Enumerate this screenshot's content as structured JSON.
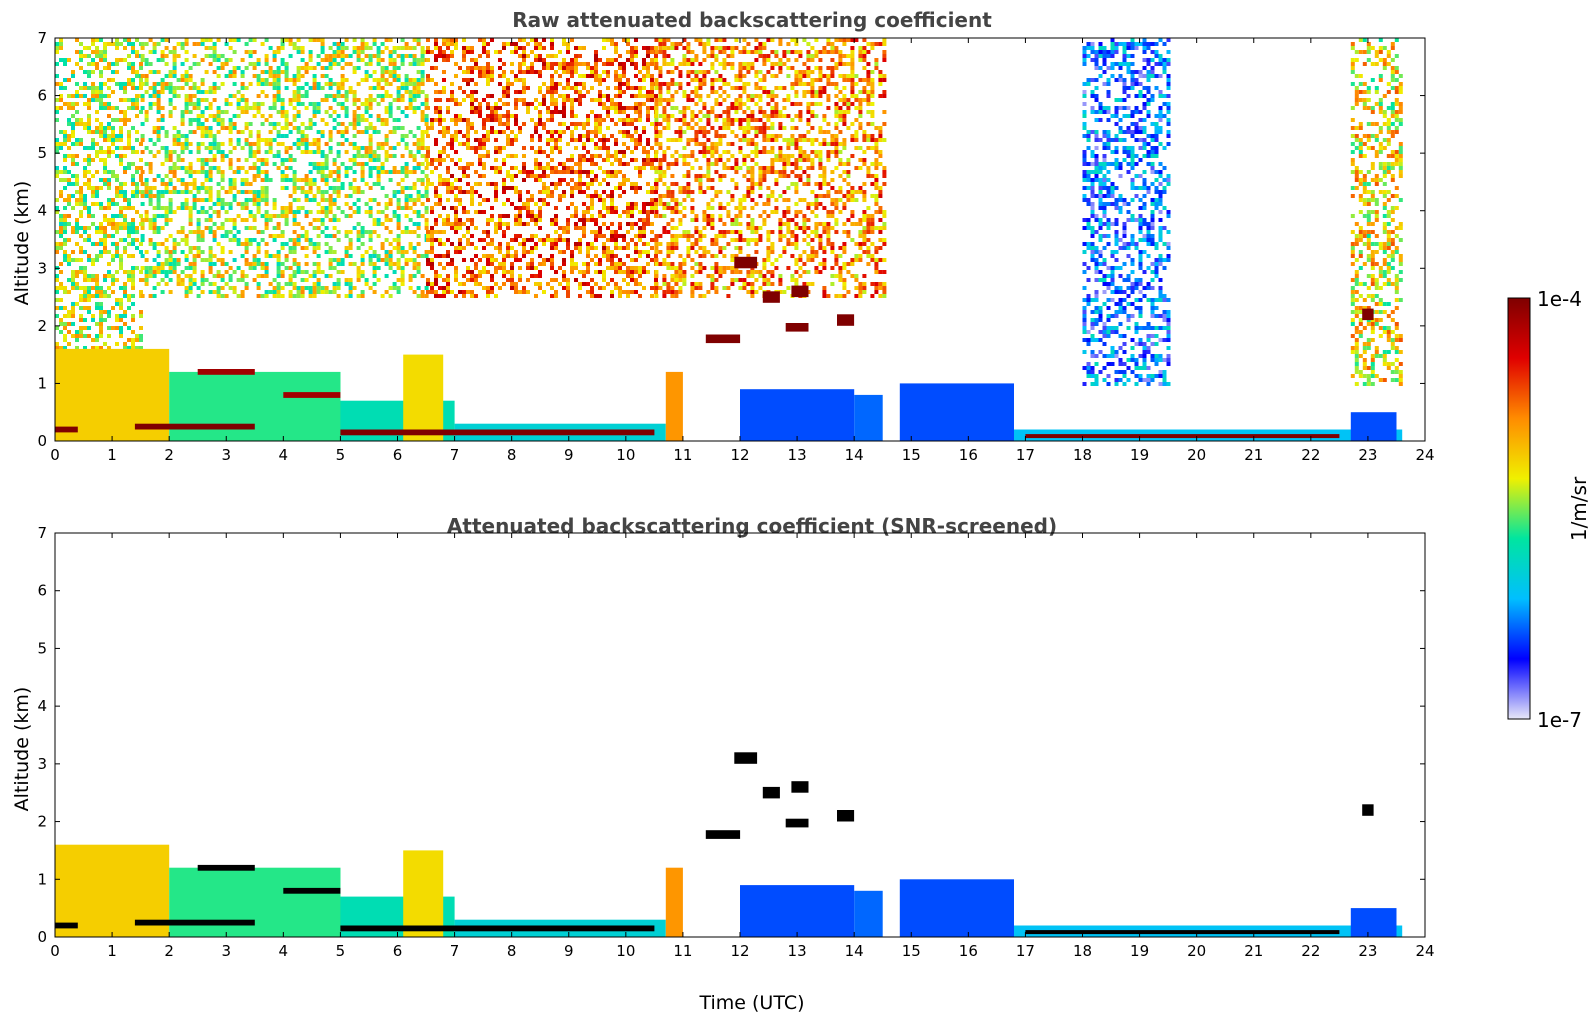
{
  "chart_data": [
    {
      "type": "heatmap",
      "title": "Raw attenuated backscattering coefficient",
      "xlabel": "",
      "ylabel": "Altitude (km)",
      "xlim": [
        0,
        24
      ],
      "ylim": [
        0,
        7
      ],
      "xticks": [
        "0",
        "1",
        "2",
        "3",
        "4",
        "5",
        "6",
        "7",
        "8",
        "9",
        "10",
        "11",
        "12",
        "13",
        "14",
        "15",
        "16",
        "17",
        "18",
        "19",
        "20",
        "21",
        "22",
        "23",
        "24"
      ],
      "yticks": [
        "0",
        "1",
        "2",
        "3",
        "4",
        "5",
        "6",
        "7"
      ],
      "data_end_hour": 23.6,
      "noise": [
        {
          "x0": 0.0,
          "x1": 1.5,
          "y0": 1.5,
          "y1": 7,
          "level": 0.55
        },
        {
          "x0": 1.5,
          "x1": 6.5,
          "y0": 2.5,
          "y1": 7,
          "level": 0.55
        },
        {
          "x0": 6.5,
          "x1": 10.5,
          "y0": 2.5,
          "y1": 7,
          "level": 0.75
        },
        {
          "x0": 10.5,
          "x1": 14.5,
          "y0": 2.5,
          "y1": 7,
          "level": 0.7
        },
        {
          "x0": 18.0,
          "x1": 19.5,
          "y0": 1.0,
          "y1": 7,
          "level": 0.22
        },
        {
          "x0": 22.7,
          "x1": 23.6,
          "y0": 1.0,
          "y1": 7,
          "level": 0.6
        }
      ],
      "features": [
        {
          "name": "surface boundary layer 0-2h",
          "x0": 0.0,
          "x1": 2.0,
          "y0": 0.0,
          "y1": 1.6,
          "level": 0.62
        },
        {
          "name": "boundary layer 2-5h",
          "x0": 2.0,
          "x1": 5.0,
          "y0": 0.0,
          "y1": 1.2,
          "level": 0.45
        },
        {
          "name": "boundary layer 5-7h",
          "x0": 5.0,
          "x1": 7.0,
          "y0": 0.0,
          "y1": 0.7,
          "level": 0.4
        },
        {
          "name": "aerosol layer 7-10.7h",
          "x0": 7.0,
          "x1": 10.7,
          "y0": 0.0,
          "y1": 0.3,
          "level": 0.35
        },
        {
          "name": "convective plume 6.3h",
          "x0": 6.1,
          "x1": 6.8,
          "y0": 0.0,
          "y1": 1.5,
          "level": 0.6
        },
        {
          "name": "cloud base 11h",
          "x0": 10.7,
          "x1": 11.0,
          "y0": 0.0,
          "y1": 1.2,
          "level": 0.7
        },
        {
          "name": "blue boundary layer 12-14h",
          "x0": 12.0,
          "x1": 14.0,
          "y0": 0.0,
          "y1": 0.9,
          "level": 0.2
        },
        {
          "name": "blue boundary layer 14-15h",
          "x0": 14.0,
          "x1": 14.5,
          "y0": 0.0,
          "y1": 0.8,
          "level": 0.22
        },
        {
          "name": "blue boundary layer 15-16.8h",
          "x0": 14.8,
          "x1": 16.8,
          "y0": 0.0,
          "y1": 1.0,
          "level": 0.2
        },
        {
          "name": "thin surface layer 16.8-23.6h",
          "x0": 16.8,
          "x1": 23.6,
          "y0": 0.0,
          "y1": 0.2,
          "level": 0.3
        },
        {
          "name": "blue layer 22.7-23.6h",
          "x0": 22.7,
          "x1": 23.5,
          "y0": 0.0,
          "y1": 0.5,
          "level": 0.2
        },
        {
          "name": "dense layer 0-1h",
          "x0": 0.0,
          "x1": 0.4,
          "y0": 0.15,
          "y1": 0.25,
          "level": 1.0
        },
        {
          "name": "dense layer 1.4-3.5h",
          "x0": 1.4,
          "x1": 3.5,
          "y0": 0.2,
          "y1": 0.3,
          "level": 1.0
        },
        {
          "name": "dense layer 5-10.5h",
          "x0": 5.0,
          "x1": 10.5,
          "y0": 0.1,
          "y1": 0.2,
          "level": 1.0
        },
        {
          "name": "dense layer 17-22.5h",
          "x0": 17.0,
          "x1": 22.5,
          "y0": 0.05,
          "y1": 0.12,
          "level": 1.0
        },
        {
          "name": "elevated layer 2.5-3.5h",
          "x0": 2.5,
          "x1": 3.5,
          "y0": 1.15,
          "y1": 1.25,
          "level": 0.95
        },
        {
          "name": "elevated layer 4-5h",
          "x0": 4.0,
          "x1": 5.0,
          "y0": 0.75,
          "y1": 0.85,
          "level": 0.95
        },
        {
          "name": "cloud 12h",
          "x0": 11.9,
          "x1": 12.3,
          "y0": 3.0,
          "y1": 3.2,
          "level": 1.0
        },
        {
          "name": "cloud 12.5h",
          "x0": 12.4,
          "x1": 12.7,
          "y0": 2.4,
          "y1": 2.6,
          "level": 1.0
        },
        {
          "name": "cloud 13h",
          "x0": 12.9,
          "x1": 13.2,
          "y0": 2.5,
          "y1": 2.7,
          "level": 1.0
        },
        {
          "name": "cloud 12.8h",
          "x0": 12.8,
          "x1": 13.2,
          "y0": 1.9,
          "y1": 2.05,
          "level": 1.0
        },
        {
          "name": "cloud 11.5h",
          "x0": 11.4,
          "x1": 12.0,
          "y0": 1.7,
          "y1": 1.85,
          "level": 1.0
        },
        {
          "name": "cloud 13.8h",
          "x0": 13.7,
          "x1": 14.0,
          "y0": 2.0,
          "y1": 2.2,
          "level": 1.0
        },
        {
          "name": "cloud 23h",
          "x0": 22.9,
          "x1": 23.1,
          "y0": 2.1,
          "y1": 2.3,
          "level": 1.0
        }
      ]
    },
    {
      "type": "heatmap",
      "title": "Attenuated backscattering coefficient (SNR-screened)",
      "xlabel": "Time (UTC)",
      "ylabel": "Altitude (km)",
      "xlim": [
        0,
        24
      ],
      "ylim": [
        0,
        7
      ],
      "xticks": [
        "0",
        "1",
        "2",
        "3",
        "4",
        "5",
        "6",
        "7",
        "8",
        "9",
        "10",
        "11",
        "12",
        "13",
        "14",
        "15",
        "16",
        "17",
        "18",
        "19",
        "20",
        "21",
        "22",
        "23",
        "24"
      ],
      "yticks": [
        "0",
        "1",
        "2",
        "3",
        "4",
        "5",
        "6",
        "7"
      ],
      "data_end_hour": 23.6,
      "noise": [],
      "features": [
        {
          "name": "surface boundary layer 0-2h",
          "x0": 0.0,
          "x1": 2.0,
          "y0": 0.0,
          "y1": 1.6,
          "level": 0.62
        },
        {
          "name": "boundary layer 2-5h",
          "x0": 2.0,
          "x1": 5.0,
          "y0": 0.0,
          "y1": 1.2,
          "level": 0.45
        },
        {
          "name": "boundary layer 5-7h",
          "x0": 5.0,
          "x1": 7.0,
          "y0": 0.0,
          "y1": 0.7,
          "level": 0.4
        },
        {
          "name": "aerosol layer 7-10.7h",
          "x0": 7.0,
          "x1": 10.7,
          "y0": 0.0,
          "y1": 0.3,
          "level": 0.35
        },
        {
          "name": "convective plume 6.3h",
          "x0": 6.1,
          "x1": 6.8,
          "y0": 0.0,
          "y1": 1.5,
          "level": 0.6
        },
        {
          "name": "cloud base 11h",
          "x0": 10.7,
          "x1": 11.0,
          "y0": 0.0,
          "y1": 1.2,
          "level": 0.7
        },
        {
          "name": "blue boundary layer 12-14h",
          "x0": 12.0,
          "x1": 14.0,
          "y0": 0.0,
          "y1": 0.9,
          "level": 0.2
        },
        {
          "name": "blue boundary layer 14-15h",
          "x0": 14.0,
          "x1": 14.5,
          "y0": 0.0,
          "y1": 0.8,
          "level": 0.22
        },
        {
          "name": "blue boundary layer 15-16.8h",
          "x0": 14.8,
          "x1": 16.8,
          "y0": 0.0,
          "y1": 1.0,
          "level": 0.2
        },
        {
          "name": "thin surface layer 16.8-23.6h",
          "x0": 16.8,
          "x1": 23.6,
          "y0": 0.0,
          "y1": 0.2,
          "level": 0.3
        },
        {
          "name": "blue layer 22.7-23.6h",
          "x0": 22.7,
          "x1": 23.5,
          "y0": 0.0,
          "y1": 0.5,
          "level": 0.2
        },
        {
          "name": "dense layer 0-1h",
          "x0": 0.0,
          "x1": 0.4,
          "y0": 0.15,
          "y1": 0.25,
          "level": 1.0,
          "screened": true
        },
        {
          "name": "dense layer 1.4-3.5h",
          "x0": 1.4,
          "x1": 3.5,
          "y0": 0.2,
          "y1": 0.3,
          "level": 1.0,
          "screened": true
        },
        {
          "name": "dense layer 5-10.5h",
          "x0": 5.0,
          "x1": 10.5,
          "y0": 0.1,
          "y1": 0.2,
          "level": 1.0,
          "screened": true
        },
        {
          "name": "dense layer 17-22.5h",
          "x0": 17.0,
          "x1": 22.5,
          "y0": 0.05,
          "y1": 0.12,
          "level": 1.0,
          "screened": true
        },
        {
          "name": "elevated layer 2.5-3.5h",
          "x0": 2.5,
          "x1": 3.5,
          "y0": 1.15,
          "y1": 1.25,
          "level": 1.0,
          "screened": true
        },
        {
          "name": "elevated layer 4-5h",
          "x0": 4.0,
          "x1": 5.0,
          "y0": 0.75,
          "y1": 0.85,
          "level": 1.0,
          "screened": true
        },
        {
          "name": "cloud 12h",
          "x0": 11.9,
          "x1": 12.3,
          "y0": 3.0,
          "y1": 3.2,
          "level": 1.0,
          "screened": true
        },
        {
          "name": "cloud 12.5h",
          "x0": 12.4,
          "x1": 12.7,
          "y0": 2.4,
          "y1": 2.6,
          "level": 1.0,
          "screened": true
        },
        {
          "name": "cloud 13h",
          "x0": 12.9,
          "x1": 13.2,
          "y0": 2.5,
          "y1": 2.7,
          "level": 1.0,
          "screened": true
        },
        {
          "name": "cloud 12.8h",
          "x0": 12.8,
          "x1": 13.2,
          "y0": 1.9,
          "y1": 2.05,
          "level": 1.0,
          "screened": true
        },
        {
          "name": "cloud 11.5h",
          "x0": 11.4,
          "x1": 12.0,
          "y0": 1.7,
          "y1": 1.85,
          "level": 1.0,
          "screened": true
        },
        {
          "name": "cloud 13.8h",
          "x0": 13.7,
          "x1": 14.0,
          "y0": 2.0,
          "y1": 2.2,
          "level": 1.0,
          "screened": true
        },
        {
          "name": "cloud 23h",
          "x0": 22.9,
          "x1": 23.1,
          "y0": 2.1,
          "y1": 2.3,
          "level": 1.0,
          "screened": true
        }
      ]
    }
  ],
  "colorbar": {
    "max_label": "1e-4",
    "min_label": "1e-7",
    "label": "1/m/sr",
    "colormap": [
      "#e8e8f8",
      "#0000ff",
      "#00bfff",
      "#00e5a0",
      "#f0f000",
      "#ff8c00",
      "#e00000",
      "#7f0000"
    ],
    "screened_color": "#000000"
  }
}
